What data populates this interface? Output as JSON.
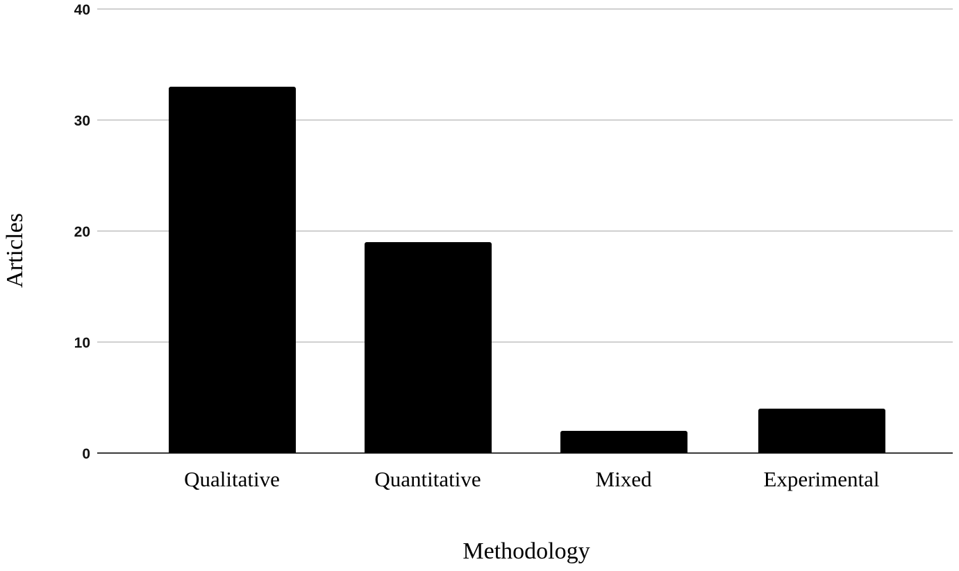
{
  "chart_data": {
    "type": "bar",
    "title": "",
    "categories": [
      "Qualitative",
      "Quantitative",
      "Mixed",
      "Experimental"
    ],
    "values": [
      33,
      19,
      2,
      4
    ],
    "xlabel": "Methodology",
    "ylabel": "Articles",
    "yticks": [
      0,
      10,
      20,
      30,
      40
    ],
    "ylim": [
      0,
      40
    ],
    "grid": "horizontal-only",
    "legend_position": "none",
    "bar_color": "#000000",
    "gridline_color": "#d0d0d0",
    "axis_line_color": "#3a3a3a",
    "background_color": "#ffffff"
  }
}
